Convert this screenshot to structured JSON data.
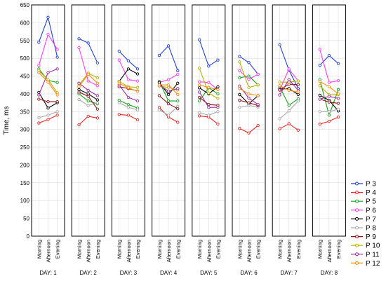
{
  "chart_data": {
    "type": "line",
    "ylabel": "Time, ms",
    "ylim": [
      0,
      650
    ],
    "yticks": [
      0,
      50,
      100,
      150,
      200,
      250,
      300,
      350,
      400,
      450,
      500,
      550,
      600,
      650
    ],
    "grid": true,
    "legend_position": "right",
    "x_categories": [
      "Morning",
      "Afternoon",
      "Evening"
    ],
    "panels": [
      "DAY: 1",
      "DAY: 2",
      "DAY: 3",
      "DAY: 4",
      "DAY: 5",
      "DAY: 6",
      "DAY: 7",
      "DAY: 8"
    ],
    "series": [
      {
        "name": "P 3",
        "color": "#1f3fd6",
        "values": [
          [
            545,
            615,
            503
          ],
          [
            555,
            543,
            487
          ],
          [
            520,
            493,
            470
          ],
          [
            508,
            535,
            465
          ],
          [
            552,
            478,
            495
          ],
          [
            505,
            488,
            455
          ],
          [
            538,
            467,
            415
          ],
          [
            480,
            508,
            485
          ]
        ]
      },
      {
        "name": "P 4",
        "color": "#e8241c",
        "values": [
          [
            318,
            328,
            340
          ],
          [
            313,
            337,
            332
          ],
          [
            342,
            340,
            327
          ],
          [
            362,
            335,
            320
          ],
          [
            338,
            335,
            315
          ],
          [
            303,
            290,
            311
          ],
          [
            302,
            316,
            298
          ],
          [
            315,
            323,
            335
          ]
        ]
      },
      {
        "name": "P 5",
        "color": "#16a31a",
        "values": [
          [
            470,
            438,
            432
          ],
          [
            400,
            380,
            372
          ],
          [
            382,
            370,
            360
          ],
          [
            435,
            380,
            380
          ],
          [
            380,
            417,
            400
          ],
          [
            445,
            450,
            425
          ],
          [
            420,
            368,
            386
          ],
          [
            440,
            340,
            412
          ]
        ]
      },
      {
        "name": "P 6",
        "color": "#ff3df5",
        "values": [
          [
            480,
            567,
            525
          ],
          [
            530,
            436,
            423
          ],
          [
            495,
            440,
            436
          ],
          [
            432,
            440,
            455
          ],
          [
            434,
            432,
            412
          ],
          [
            465,
            441,
            455
          ],
          [
            410,
            470,
            436
          ],
          [
            525,
            432,
            437
          ]
        ]
      },
      {
        "name": "P 7",
        "color": "#000000",
        "values": [
          [
            404,
            360,
            375
          ],
          [
            412,
            400,
            383
          ],
          [
            435,
            470,
            456
          ],
          [
            432,
            398,
            430
          ],
          [
            417,
            400,
            420
          ],
          [
            398,
            372,
            395
          ],
          [
            413,
            415,
            398
          ],
          [
            396,
            382,
            352
          ]
        ]
      },
      {
        "name": "P 8",
        "color": "#a8a8a8",
        "values": [
          [
            333,
            340,
            350
          ],
          [
            384,
            367,
            375
          ],
          [
            375,
            362,
            355
          ],
          [
            355,
            340,
            365
          ],
          [
            347,
            340,
            350
          ],
          [
            362,
            367,
            363
          ],
          [
            330,
            352,
            380
          ],
          [
            350,
            350,
            357
          ]
        ]
      },
      {
        "name": "P 9",
        "color": "#8b1010",
        "values": [
          [
            385,
            378,
            378
          ],
          [
            405,
            393,
            357
          ],
          [
            420,
            415,
            408
          ],
          [
            395,
            372,
            358
          ],
          [
            390,
            370,
            368
          ],
          [
            382,
            375,
            367
          ],
          [
            411,
            427,
            426
          ],
          [
            385,
            377,
            373
          ]
        ]
      },
      {
        "name": "P 10",
        "color": "#b8b000",
        "values": [
          [
            465,
            440,
            403
          ],
          [
            425,
            458,
            445
          ],
          [
            435,
            420,
            418
          ],
          [
            422,
            418,
            411
          ],
          [
            472,
            402,
            387
          ],
          [
            490,
            418,
            425
          ],
          [
            433,
            433,
            436
          ],
          [
            423,
            397,
            398
          ]
        ]
      },
      {
        "name": "P 11",
        "color": "#9b2aa6",
        "values": [
          [
            397,
            460,
            470
          ],
          [
            430,
            410,
            395
          ],
          [
            425,
            390,
            380
          ],
          [
            425,
            408,
            415
          ],
          [
            405,
            362,
            362
          ],
          [
            422,
            388,
            370
          ],
          [
            397,
            440,
            410
          ],
          [
            385,
            393,
            387
          ]
        ]
      },
      {
        "name": "P 12",
        "color": "#ff8a00",
        "values": [
          [
            460,
            433,
            397
          ],
          [
            420,
            455,
            430
          ],
          [
            430,
            417,
            407
          ],
          [
            425,
            425,
            398
          ],
          [
            425,
            418,
            412
          ],
          [
            415,
            400,
            395
          ],
          [
            423,
            410,
            405
          ],
          [
            435,
            420,
            400
          ]
        ]
      }
    ]
  }
}
